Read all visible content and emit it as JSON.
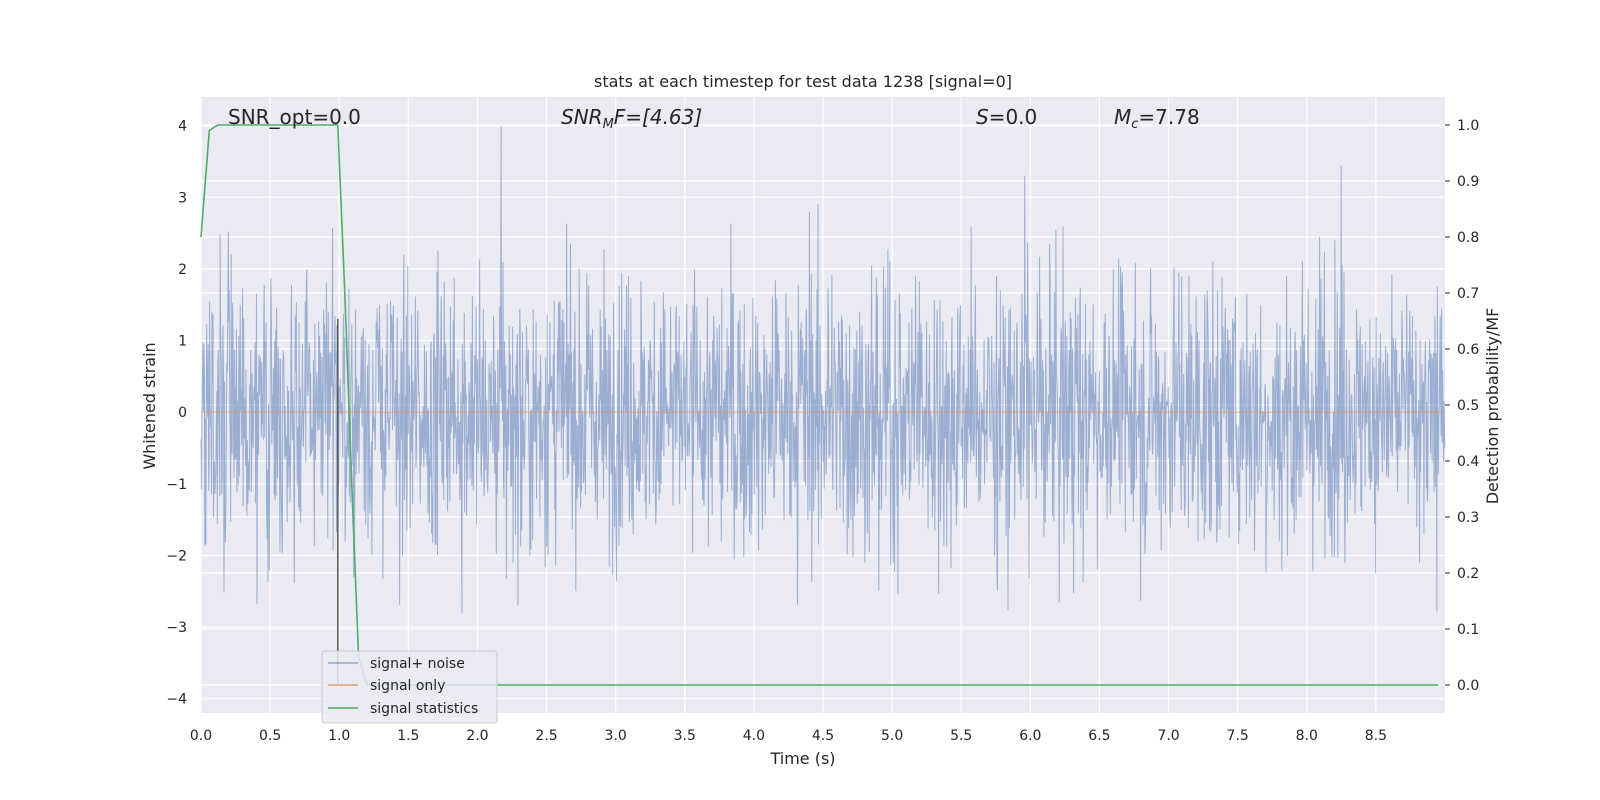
{
  "chart_data": {
    "type": "line",
    "title": "stats at each timestep for test data 1238 [signal=0]",
    "xlabel": "Time (s)",
    "ylabel_left": "Whitened strain",
    "ylabel_right": "Detection probability/MF",
    "xlim": [
      0.0,
      9.0
    ],
    "ylim_left": [
      -4.2,
      4.4
    ],
    "ylim_right": [
      -0.05,
      1.05
    ],
    "x_ticks": [
      "0.0",
      "0.5",
      "1.0",
      "1.5",
      "2.0",
      "2.5",
      "3.0",
      "3.5",
      "4.0",
      "4.5",
      "5.0",
      "5.5",
      "6.0",
      "6.5",
      "7.0",
      "7.5",
      "8.0",
      "8.5"
    ],
    "y_left_ticks": [
      "4",
      "3",
      "2",
      "1",
      "0",
      "−1",
      "−2",
      "−3",
      "−4"
    ],
    "y_right_ticks": [
      "1.0",
      "0.9",
      "0.8",
      "0.7",
      "0.6",
      "0.5",
      "0.4",
      "0.3",
      "0.2",
      "0.1",
      "0.0"
    ],
    "annotations": {
      "snr_opt": "SNR_opt=0.0",
      "snr_mf_label": "SNR",
      "snr_mf_sub": "M",
      "snr_mf_value": "F=[4.63]",
      "s_label": "S",
      "s_value": "=0.0",
      "mc_label": "M",
      "mc_sub": "c",
      "mc_value": "=7.78"
    },
    "grid": true,
    "legend_position": "lower-left",
    "series": [
      {
        "name": "signal+ noise",
        "axis": "left",
        "color": "#4c72b0",
        "style": "noise, roughly within [-3.8, 4.0]"
      },
      {
        "name": "signal only",
        "axis": "left",
        "color": "#dd8452",
        "x": [
          0.0,
          9.0
        ],
        "y": [
          0.0,
          0.0
        ]
      },
      {
        "name": "signal statistics",
        "axis": "right",
        "color": "#55a868",
        "x": [
          0.0,
          0.06,
          0.12,
          0.2,
          0.4,
          0.6,
          0.8,
          0.95,
          0.99,
          1.04,
          1.1,
          1.14,
          1.2,
          2.0,
          4.0,
          6.0,
          8.0,
          8.95
        ],
        "y": [
          0.8,
          0.99,
          1.0,
          1.0,
          1.0,
          1.0,
          1.0,
          1.0,
          1.0,
          0.7,
          0.3,
          0.05,
          0.0,
          0.0,
          0.0,
          0.0,
          0.0,
          0.0
        ]
      }
    ],
    "marker_line_x": 0.99
  }
}
